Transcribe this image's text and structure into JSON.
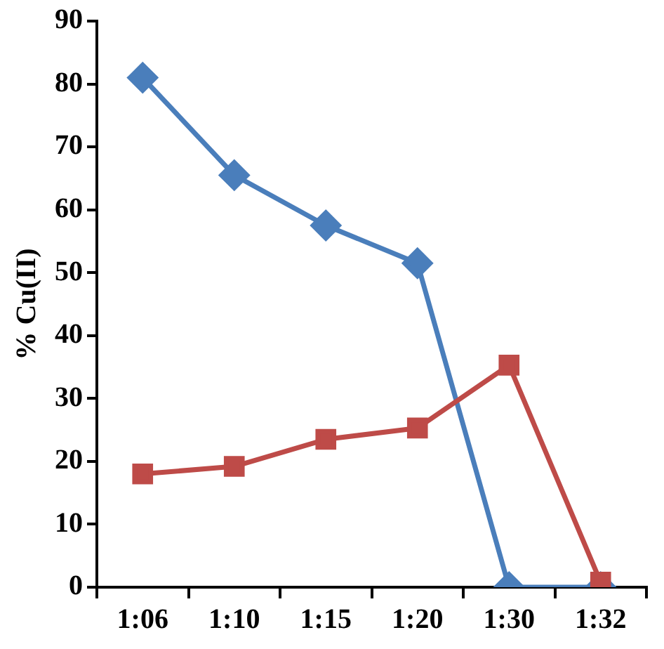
{
  "chart_data": {
    "type": "line",
    "ylabel": "% Cu(II)",
    "categories": [
      "1:06",
      "1:10",
      "1:15",
      "1:20",
      "1:30",
      "1:32"
    ],
    "ylim": [
      0,
      90
    ],
    "yticks": [
      0,
      10,
      20,
      30,
      40,
      50,
      60,
      70,
      80,
      90
    ],
    "grid": false,
    "legend": false,
    "line_style": "solid",
    "series": [
      {
        "color": "#4a7ebb",
        "marker": "diamond",
        "values": [
          81,
          65.5,
          57.5,
          51.5,
          0,
          0
        ]
      },
      {
        "color": "#be4b48",
        "marker": "square",
        "values": [
          18,
          19.2,
          23.5,
          25.3,
          35.3,
          0.8
        ]
      }
    ]
  }
}
